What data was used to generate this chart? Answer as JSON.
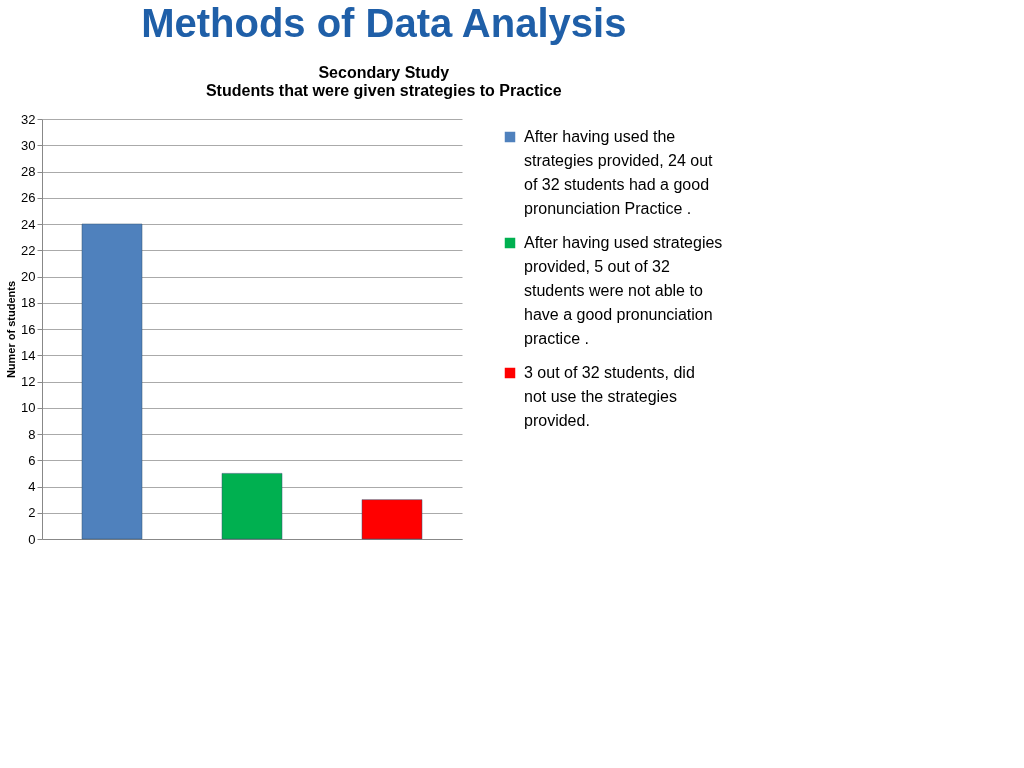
{
  "chart_data": {
    "type": "bar",
    "title": "Methods of Data Analysis",
    "subtitle": "Secondary Study\nStudents that were given strategies to Practice",
    "ylabel": "Numer of students",
    "categories": [
      null,
      null,
      null
    ],
    "series": [
      {
        "name": "After having used the strategies provided, 24 out of 32 students had a good pronunciation Practice .",
        "color": "#4f81bd",
        "values": [
          24,
          null,
          null
        ]
      },
      {
        "name": "After having used strategies provided, 5 out of 32 students were not able to have a good pronunciation practice .",
        "color": "#00b050",
        "values": [
          null,
          5,
          null
        ]
      },
      {
        "name": "3 out of 32 students, did not use the strategies provided.",
        "color": "#ff0000",
        "values": [
          null,
          null,
          3
        ]
      }
    ],
    "ylim": [
      0,
      32
    ],
    "yticks": [
      0,
      2,
      4,
      6,
      8,
      10,
      12,
      14,
      16,
      18,
      20,
      22,
      24,
      26,
      28,
      30,
      32
    ],
    "grid": "y",
    "legend": "right"
  }
}
